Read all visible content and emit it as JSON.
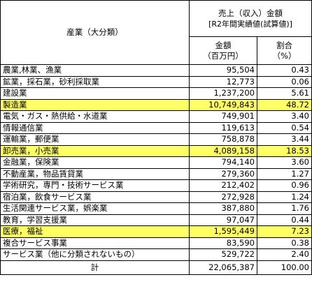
{
  "table": {
    "header": {
      "industry": "産業（大分類）",
      "sales_title": "売上（収入）金額",
      "sales_subtitle": "[R2年間実績値(試算値)]",
      "amount": "金額",
      "amount_unit": "（百万円）",
      "share": "割合",
      "share_unit": "（%）"
    },
    "highlight_color": "#ffff66",
    "rows": [
      {
        "cells": [
          "農業,林業、漁業",
          "95,504",
          "0.43"
        ]
      },
      {
        "cells": [
          "鉱業，採石業，砂利採取業",
          "12,773",
          "0.06"
        ]
      },
      {
        "cells": [
          "建設業",
          "1,237,200",
          "5.61"
        ]
      },
      {
        "cells": [
          "製造業",
          "10,749,843",
          "48.72"
        ],
        "highlight": true
      },
      {
        "cells": [
          "電気・ガス・熱供給・水道業",
          "749,901",
          "3.40"
        ]
      },
      {
        "cells": [
          "情報通信業",
          "119,613",
          "0.54"
        ]
      },
      {
        "cells": [
          "運輸業，郵便業",
          "758,878",
          "3.44"
        ]
      },
      {
        "cells": [
          "卸売業，小売業",
          "4,089,158",
          "18.53"
        ],
        "highlight": true
      },
      {
        "cells": [
          "金融業，保険業",
          "794,140",
          "3.60"
        ]
      },
      {
        "cells": [
          "不動産業，物品賃貸業",
          "279,360",
          "1.27"
        ]
      },
      {
        "cells": [
          "学術研究，専門・技術サービス業",
          "212,402",
          "0.96"
        ]
      },
      {
        "cells": [
          "宿泊業，飲食サービス業",
          "272,928",
          "1.24"
        ]
      },
      {
        "cells": [
          "生活関連サービス業，娯楽業",
          "387,880",
          "1.76"
        ]
      },
      {
        "cells": [
          "教育，学習支援業",
          "97,047",
          "0.44"
        ]
      },
      {
        "cells": [
          "医療，福祉",
          "1,595,449",
          "7.23"
        ],
        "highlight": true
      },
      {
        "cells": [
          "複合サービス事業",
          "83,590",
          "0.38"
        ]
      },
      {
        "cells": [
          "サービス業（他に分類されないもの）",
          "529,722",
          "2.40"
        ]
      }
    ],
    "total": [
      "計",
      "22,065,387",
      "100.00"
    ]
  }
}
